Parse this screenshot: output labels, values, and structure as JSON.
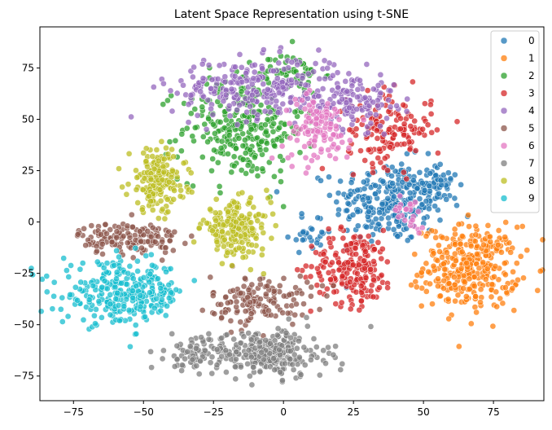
{
  "chart_data": {
    "type": "scatter",
    "title": "Latent Space Representation using t-SNE",
    "xlabel": "",
    "ylabel": "",
    "xlim": [
      -87,
      93
    ],
    "ylim": [
      -87,
      95
    ],
    "x_ticks": [
      -75,
      -50,
      -25,
      0,
      25,
      50,
      75
    ],
    "y_ticks": [
      -75,
      -50,
      -25,
      0,
      25,
      50,
      75
    ],
    "grid": false,
    "legend_position": "top-right",
    "legend": [
      "0",
      "1",
      "2",
      "3",
      "4",
      "5",
      "6",
      "7",
      "8",
      "9"
    ],
    "series": [
      {
        "name": "0",
        "color": "#1f77b4",
        "clusters": [
          {
            "cx": 38,
            "cy": 10,
            "rx": 20,
            "ry": 20,
            "n": 260
          },
          {
            "cx": 55,
            "cy": 18,
            "rx": 8,
            "ry": 10,
            "n": 50
          },
          {
            "cx": 10,
            "cy": -5,
            "rx": 8,
            "ry": 10,
            "n": 25
          }
        ]
      },
      {
        "name": "1",
        "color": "#ff7f0e",
        "clusters": [
          {
            "cx": 67,
            "cy": -22,
            "rx": 17,
            "ry": 20,
            "n": 330
          }
        ]
      },
      {
        "name": "2",
        "color": "#2ca02c",
        "clusters": [
          {
            "cx": -15,
            "cy": 45,
            "rx": 22,
            "ry": 25,
            "n": 280
          },
          {
            "cx": 2,
            "cy": 72,
            "rx": 12,
            "ry": 10,
            "n": 60
          }
        ]
      },
      {
        "name": "3",
        "color": "#d62728",
        "clusters": [
          {
            "cx": 25,
            "cy": -22,
            "rx": 15,
            "ry": 18,
            "n": 210
          },
          {
            "cx": 38,
            "cy": 45,
            "rx": 15,
            "ry": 18,
            "n": 150
          }
        ]
      },
      {
        "name": "4",
        "color": "#9467bd",
        "clusters": [
          {
            "cx": -10,
            "cy": 65,
            "rx": 30,
            "ry": 15,
            "n": 260
          },
          {
            "cx": 25,
            "cy": 60,
            "rx": 15,
            "ry": 14,
            "n": 120
          }
        ]
      },
      {
        "name": "5",
        "color": "#8c564b",
        "clusters": [
          {
            "cx": -55,
            "cy": -8,
            "rx": 18,
            "ry": 8,
            "n": 150
          },
          {
            "cx": -8,
            "cy": -38,
            "rx": 18,
            "ry": 12,
            "n": 140
          }
        ]
      },
      {
        "name": "6",
        "color": "#e377c2",
        "clusters": [
          {
            "cx": 12,
            "cy": 45,
            "rx": 12,
            "ry": 16,
            "n": 120
          },
          {
            "cx": 45,
            "cy": 5,
            "rx": 6,
            "ry": 8,
            "n": 25
          }
        ]
      },
      {
        "name": "7",
        "color": "#7f7f7f",
        "clusters": [
          {
            "cx": -5,
            "cy": -64,
            "rx": 20,
            "ry": 12,
            "n": 260
          },
          {
            "cx": -32,
            "cy": -64,
            "rx": 10,
            "ry": 8,
            "n": 70
          }
        ]
      },
      {
        "name": "8",
        "color": "#bcbd22",
        "clusters": [
          {
            "cx": -45,
            "cy": 20,
            "rx": 10,
            "ry": 15,
            "n": 200
          },
          {
            "cx": -17,
            "cy": -3,
            "rx": 12,
            "ry": 13,
            "n": 200
          }
        ]
      },
      {
        "name": "9",
        "color": "#17becf",
        "clusters": [
          {
            "cx": -57,
            "cy": -35,
            "rx": 22,
            "ry": 15,
            "n": 300
          }
        ]
      }
    ]
  }
}
